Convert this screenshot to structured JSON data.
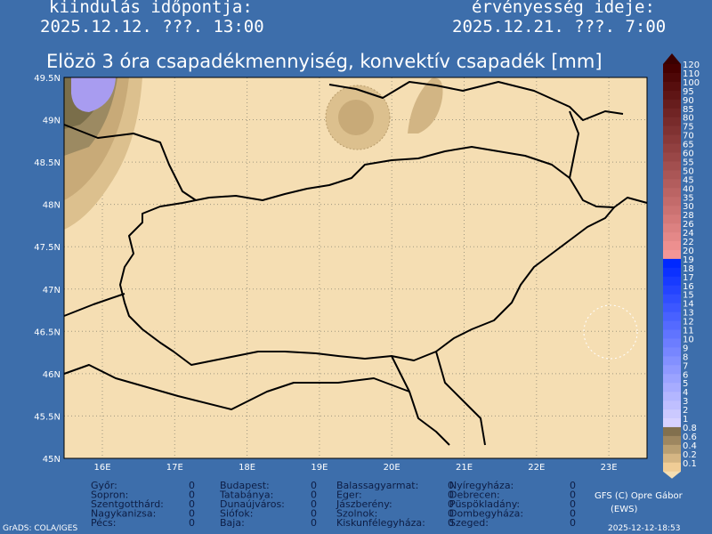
{
  "header": {
    "start_label": "kiindulás időpontja:",
    "start_value": "2025.12.12. ???. 13:00",
    "valid_label": "érvényesség ideje:",
    "valid_value": "2025.12.21. ???. 7:00"
  },
  "title": "Elözö 3 óra csapadékmennyiség, konvektív csapadék [mm]",
  "map": {
    "lat_labels": [
      "49.5N",
      "49N",
      "48.5N",
      "48N",
      "47.5N",
      "47N",
      "46.5N",
      "46N",
      "45.5N",
      "45N"
    ],
    "lon_labels": [
      "16E",
      "17E",
      "18E",
      "19E",
      "20E",
      "21E",
      "22E",
      "23E"
    ]
  },
  "colorbar": {
    "levels": [
      120,
      110,
      100,
      95,
      90,
      85,
      80,
      75,
      70,
      65,
      60,
      55,
      50,
      45,
      40,
      35,
      30,
      28,
      26,
      24,
      22,
      20,
      19,
      18,
      17,
      16,
      15,
      14,
      13,
      12,
      11,
      10,
      9,
      8,
      7,
      6,
      5,
      4,
      3,
      2,
      1,
      0.8,
      0.6,
      0.4,
      0.2,
      0.1
    ]
  },
  "cities": [
    [
      [
        "Győr:",
        0
      ],
      [
        "Sopron:",
        0
      ],
      [
        "Szentgotthárd:",
        0
      ],
      [
        "Nagykanizsa:",
        0
      ],
      [
        "Pécs:",
        0
      ]
    ],
    [
      [
        "Budapest:",
        0
      ],
      [
        "Tatabánya:",
        0
      ],
      [
        "Dunaújváros:",
        0
      ],
      [
        "Siófok:",
        0
      ],
      [
        "Baja:",
        0
      ]
    ],
    [
      [
        "Balassagyarmat:",
        0
      ],
      [
        "Eger:",
        0
      ],
      [
        "Jászberény:",
        0
      ],
      [
        "Szolnok:",
        0
      ],
      [
        "Kiskunfélegyháza:",
        0
      ]
    ],
    [
      [
        "Nyíregyháza:",
        0
      ],
      [
        "Debrecen:",
        0
      ],
      [
        "Püspökladány:",
        0
      ],
      [
        "Dombegyháza:",
        0
      ],
      [
        "Szeged:",
        0
      ]
    ]
  ],
  "footer": {
    "credit": "GFS (C) Opre Gábor",
    "credit2": "(EWS)",
    "grads": "GrADS: COLA/IGES",
    "timestamp": "2025-12-12-18:53"
  }
}
